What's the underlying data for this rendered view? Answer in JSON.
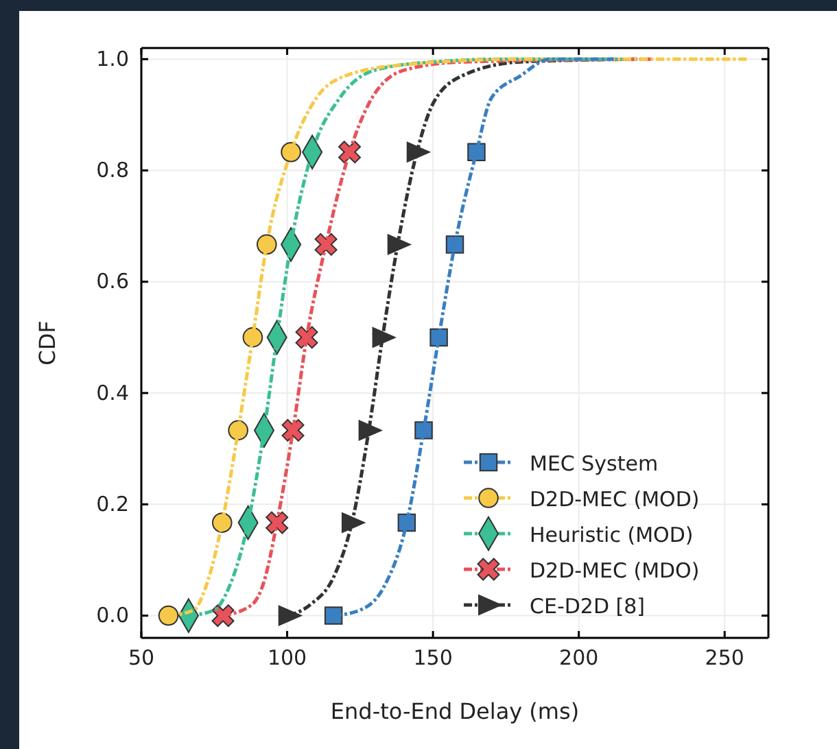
{
  "chart_data": {
    "type": "line",
    "xlabel": "End-to-End Delay (ms)",
    "ylabel": "CDF",
    "xlim": [
      50,
      265
    ],
    "xticks": [
      50,
      100,
      150,
      200,
      250
    ],
    "ylim": [
      -0.04,
      1.02
    ],
    "yticks": [
      {
        "value": 0,
        "label": "0.0"
      },
      0.2,
      0.4,
      0.6,
      0.8,
      {
        "value": 1,
        "label": "1.0"
      }
    ],
    "grid": true,
    "legend": "bottom right",
    "line_style": "dashed",
    "series": [
      {
        "color": "#3a7fc1",
        "marker": "none",
        "x": [
          115.9,
          125,
          133,
          141,
          146.8,
          152,
          157.5,
          164.9,
          170,
          180,
          190,
          212
        ],
        "values": [
          0,
          0.01,
          0.05,
          0.167,
          0.333,
          0.5,
          0.667,
          0.833,
          0.93,
          0.97,
          1.0,
          1.0
        ]
      },
      {
        "color": "#f7c948",
        "marker": "none",
        "x": [
          59.3,
          68,
          72,
          77.7,
          83.2,
          88.2,
          93,
          101.3,
          110,
          120,
          140,
          180,
          258
        ],
        "values": [
          0,
          0.01,
          0.05,
          0.167,
          0.333,
          0.5,
          0.667,
          0.833,
          0.93,
          0.97,
          0.99,
          1.0,
          1.0
        ]
      },
      {
        "color": "#3bbf94",
        "marker": "none",
        "x": [
          66.2,
          75,
          80,
          86.6,
          92.1,
          96.5,
          101.3,
          108.6,
          118,
          130,
          150,
          175,
          215
        ],
        "values": [
          0,
          0.01,
          0.05,
          0.167,
          0.333,
          0.5,
          0.667,
          0.833,
          0.93,
          0.98,
          0.995,
          1.0,
          1.0
        ]
      },
      {
        "color": "#e8525a",
        "marker": "none",
        "x": [
          78,
          88,
          92,
          96.5,
          102,
          106.7,
          113.3,
          121.4,
          128,
          140,
          160,
          225
        ],
        "values": [
          0,
          0.02,
          0.06,
          0.167,
          0.333,
          0.5,
          0.667,
          0.833,
          0.92,
          0.98,
          0.995,
          1.0
        ]
      },
      {
        "color": "#333333",
        "marker": "none",
        "x": [
          100.5,
          108,
          116,
          122.2,
          128,
          132.7,
          137.9,
          144.5,
          150,
          160,
          180,
          220
        ],
        "values": [
          0,
          0.02,
          0.07,
          0.167,
          0.333,
          0.5,
          0.667,
          0.833,
          0.92,
          0.97,
          0.995,
          1.0
        ]
      },
      {
        "type": "scatter",
        "name": "MEC System",
        "color": "#3a7fc1",
        "marker": "square",
        "x": [
          115.9,
          141,
          146.8,
          152,
          157.5,
          164.9
        ],
        "values": [
          0,
          0.167,
          0.333,
          0.5,
          0.667,
          0.833
        ]
      },
      {
        "type": "scatter",
        "name": "D2D-MEC (MOD)",
        "color": "#f7c948",
        "marker": "circle",
        "x": [
          59.3,
          77.7,
          83.2,
          88.2,
          93,
          101.3
        ],
        "values": [
          0,
          0.167,
          0.333,
          0.5,
          0.667,
          0.833
        ]
      },
      {
        "type": "scatter",
        "name": "Heuristic (MOD)",
        "color": "#3bbf94",
        "marker": "diamond",
        "x": [
          66.2,
          86.6,
          92.1,
          96.5,
          101.3,
          108.6
        ],
        "values": [
          0,
          0.167,
          0.333,
          0.5,
          0.667,
          0.833
        ]
      },
      {
        "type": "scatter",
        "name": "D2D-MEC (MDO)",
        "color": "#e8525a",
        "marker": "cross",
        "x": [
          78,
          96.5,
          102,
          106.7,
          113.3,
          121.4
        ],
        "values": [
          0,
          0.167,
          0.333,
          0.5,
          0.667,
          0.833
        ]
      },
      {
        "type": "scatter",
        "name": "CE-D2D [8]",
        "color": "#333333",
        "marker": "triangle",
        "x": [
          100.5,
          122.2,
          128,
          132.7,
          137.9,
          144.5
        ],
        "values": [
          0,
          0.167,
          0.333,
          0.5,
          0.667,
          0.833
        ]
      }
    ]
  }
}
